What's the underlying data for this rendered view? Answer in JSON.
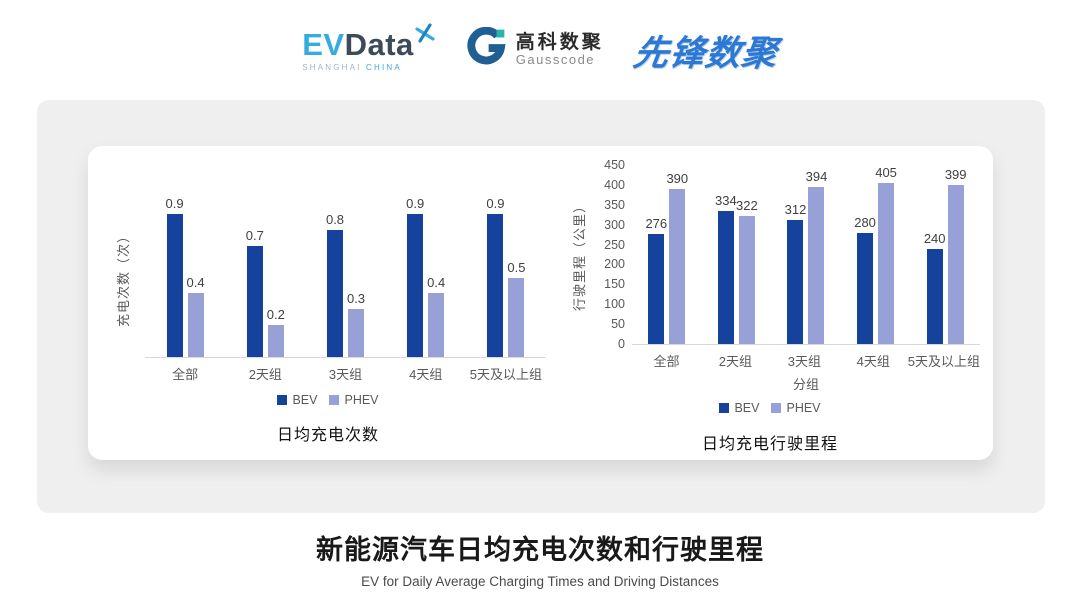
{
  "header": {
    "evdata_logo": {
      "ev": "EV",
      "data": "Data",
      "tagline_shanghai": "SHANGHAI",
      "tagline_china": "CHINA"
    },
    "gausscode_logo": {
      "name_cn": "高科数聚",
      "name_en": "Gausscode"
    },
    "pioneer_logo": {
      "text": "先锋数聚"
    }
  },
  "colors": {
    "bev": "#15429D",
    "phev": "#97A1D8",
    "axis_text": "#595959",
    "value_text": "#404040",
    "baseline": "#D8D8D8",
    "panel_bg": "#EFEFEF",
    "card_bg": "#FFFFFF",
    "evdata_cyan": "#35ACDE",
    "evdata_dark": "#3C4A59",
    "gausscode_blue": "#1F5F93",
    "gausscode_teal": "#2BB3B1",
    "pioneer_blue": "#2C78D2"
  },
  "chart_data": [
    {
      "type": "bar",
      "title": "日均充电次数",
      "ylabel": "充电次数（次）",
      "xlabel": "",
      "categories": [
        "全部",
        "2天组",
        "3天组",
        "4天组",
        "5天及以上组"
      ],
      "series": [
        {
          "name": "BEV",
          "values": [
            0.9,
            0.7,
            0.8,
            0.9,
            0.9
          ]
        },
        {
          "name": "PHEV",
          "values": [
            0.4,
            0.2,
            0.3,
            0.4,
            0.5
          ]
        }
      ],
      "ylim": [
        0,
        1
      ],
      "yticks": {
        "show": false
      },
      "grid": false,
      "legend_position": "bottom"
    },
    {
      "type": "bar",
      "title": "日均充电行驶里程",
      "ylabel": "行驶里程（公里）",
      "xlabel": "分组",
      "categories": [
        "全部",
        "2天组",
        "3天组",
        "4天组",
        "5天及以上组"
      ],
      "series": [
        {
          "name": "BEV",
          "values": [
            276,
            334,
            312,
            280,
            240
          ]
        },
        {
          "name": "PHEV",
          "values": [
            390,
            322,
            394,
            405,
            399
          ]
        }
      ],
      "ylim": [
        0,
        450
      ],
      "yticks": {
        "show": true,
        "step": 50
      },
      "grid": false,
      "legend_position": "bottom"
    }
  ],
  "footer": {
    "title": "新能源汽车日均充电次数和行驶里程",
    "subtitle": "EV for Daily Average Charging Times and Driving Distances"
  }
}
